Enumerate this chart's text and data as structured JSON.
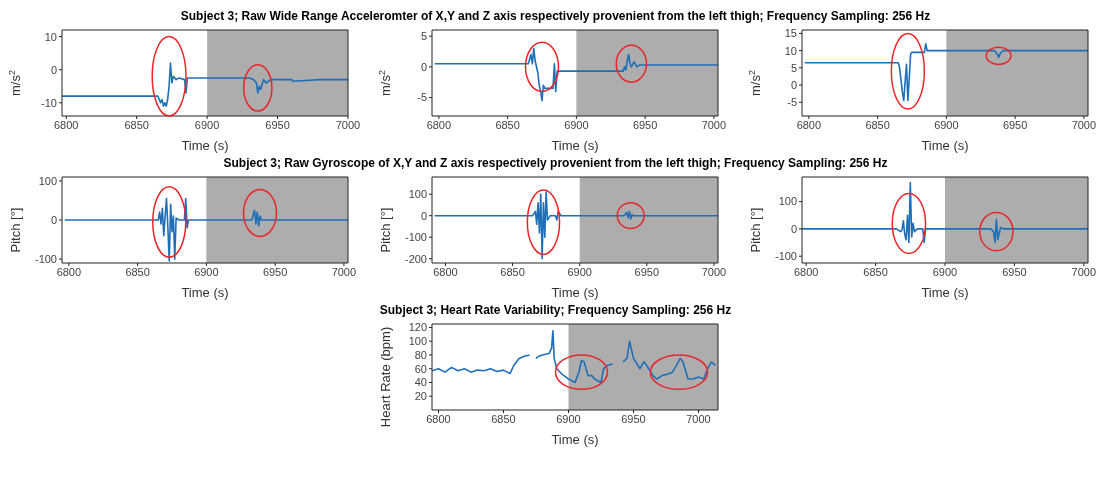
{
  "chart_data": [
    {
      "type": "line",
      "ylabel": "m/s$^{2}$",
      "xlabel": "Time (s)",
      "xlim": [
        6797,
        7000
      ],
      "xticks": [
        6800,
        6850,
        6900,
        6950,
        7000
      ],
      "ylim": [
        -14,
        12
      ],
      "yticks": [
        -10,
        0,
        10
      ],
      "bands": [
        {
          "axis": "x",
          "from": 6900,
          "to": 7000,
          "color": "#adadad"
        }
      ],
      "series": [
        {
          "color": "#1f6fb8",
          "x": [
            6797,
            6820,
            6840,
            6860,
            6865,
            6867,
            6868,
            6869,
            6870,
            6871,
            6872,
            6873,
            6874,
            6875,
            6876,
            6878,
            6880,
            6884,
            6885,
            6886,
            6890,
            6900,
            6920,
            6930,
            6933,
            6935,
            6936,
            6937,
            6938,
            6940,
            6942,
            6945,
            6950,
            6960,
            6961,
            6980,
            7000
          ],
          "values": [
            -8,
            -8,
            -8,
            -8,
            -8,
            -10,
            -9,
            -11,
            -10,
            -11,
            -9,
            -5,
            2,
            -4,
            -2,
            -3,
            -2.5,
            -3,
            -7,
            -2.5,
            -2.5,
            -2.5,
            -2.5,
            -2.5,
            -3,
            -4,
            -7,
            -5,
            -6,
            -3,
            -4,
            -3,
            -3,
            -3,
            -3.5,
            -3,
            -3
          ]
        }
      ]
    },
    {
      "type": "line",
      "title": "Subject 3; Raw Wide Range Acceleromter of X,Y and Z axis respectively provenient from the left thigh; Frequency Sampling: 256 Hz",
      "ylabel": "m/s$^{2}$",
      "xlabel": "Time (s)",
      "xlim": [
        6795,
        7003
      ],
      "xticks": [
        6800,
        6850,
        6900,
        6950,
        7000
      ],
      "ylim": [
        -8,
        6
      ],
      "yticks": [
        -5,
        0,
        5
      ],
      "bands": [
        {
          "axis": "x",
          "from": 6900,
          "to": 7003,
          "color": "#adadad"
        }
      ],
      "series": [
        {
          "color": "#1f6fb8",
          "x": [
            6797,
            6830,
            6860,
            6865,
            6867,
            6868,
            6869,
            6870,
            6872,
            6873,
            6874,
            6875,
            6876,
            6877,
            6880,
            6883,
            6884,
            6885,
            6886,
            6890,
            6910,
            6930,
            6934,
            6935,
            6936,
            6937,
            6938,
            6939,
            6940,
            6942,
            6944,
            6946,
            6950,
            6970,
            7003
          ],
          "values": [
            0.5,
            0.5,
            0.5,
            0.5,
            2,
            0.5,
            3,
            1,
            -1,
            -3,
            -4,
            -5.5,
            -3,
            -3.5,
            -3.5,
            -3.5,
            0.5,
            -4,
            -0.7,
            -0.7,
            -0.7,
            -0.7,
            -0.7,
            0,
            -0.5,
            1,
            2,
            0.5,
            0,
            0.8,
            0,
            0.3,
            0.3,
            0.3,
            0.3
          ]
        }
      ]
    },
    {
      "type": "line",
      "ylabel": "m/s$^{2}$",
      "xlabel": "Time (s)",
      "xlim": [
        6795,
        7003
      ],
      "xticks": [
        6800,
        6850,
        6900,
        6950,
        7000
      ],
      "ylim": [
        -9,
        16
      ],
      "yticks": [
        -5,
        0,
        5,
        10,
        15
      ],
      "bands": [
        {
          "axis": "x",
          "from": 6900,
          "to": 7003,
          "color": "#adadad"
        }
      ],
      "series": [
        {
          "color": "#1f6fb8",
          "x": [
            6797,
            6840,
            6865,
            6866,
            6868,
            6869,
            6870,
            6871,
            6872,
            6873,
            6874,
            6875,
            6878,
            6884,
            6885,
            6886,
            6900,
            6930,
            6935,
            6937,
            6938,
            6939,
            6941,
            6950,
            7003
          ],
          "values": [
            6.5,
            6.5,
            6.5,
            5,
            -2,
            -4.5,
            1,
            6,
            -4.5,
            2,
            9,
            9.5,
            9.5,
            9.5,
            12,
            10,
            10,
            10,
            10,
            9,
            8,
            9,
            10,
            10,
            10
          ]
        }
      ]
    },
    {
      "type": "line",
      "ylabel": "Pitch [°]",
      "xlabel": "Time (s)",
      "xlim": [
        6795,
        7003
      ],
      "xticks": [
        6800,
        6850,
        6900,
        6950,
        7000
      ],
      "ylim": [
        -110,
        110
      ],
      "yticks": [
        -100,
        0,
        100
      ],
      "bands": [
        {
          "axis": "x",
          "from": 6900,
          "to": 7003,
          "color": "#adadad"
        }
      ],
      "series": [
        {
          "color": "#1f6fb8",
          "x": [
            6797,
            6865,
            6866,
            6867,
            6868,
            6869,
            6870,
            6871,
            6872,
            6873,
            6874,
            6875,
            6876,
            6877,
            6878,
            6880,
            6884,
            6885,
            6886,
            6887,
            6900,
            6933,
            6935,
            6936,
            6937,
            6938,
            6939,
            6940,
            6942,
            6960,
            7003
          ],
          "values": [
            0,
            0,
            20,
            -10,
            30,
            -40,
            10,
            55,
            -20,
            -105,
            40,
            -30,
            10,
            -100,
            5,
            0,
            0,
            55,
            -20,
            0,
            0,
            0,
            25,
            -10,
            20,
            -15,
            10,
            0,
            0,
            0,
            0
          ]
        }
      ]
    },
    {
      "type": "line",
      "title": "Subject 3; Raw Gyroscope of X,Y and Z axis respectively provenient from the left thigh; Frequency Sampling: 256 Hz",
      "ylabel": "Pitch [°]",
      "xlabel": "Time (s)",
      "xlim": [
        6790,
        7003
      ],
      "xticks": [
        6800,
        6850,
        6900,
        6950,
        7000
      ],
      "ylim": [
        -220,
        180
      ],
      "yticks": [
        -200,
        -100,
        0,
        100
      ],
      "bands": [
        {
          "axis": "x",
          "from": 6900,
          "to": 7003,
          "color": "#adadad"
        }
      ],
      "series": [
        {
          "color": "#1f6fb8",
          "x": [
            6792,
            6865,
            6867,
            6868,
            6869,
            6870,
            6871,
            6872,
            6873,
            6874,
            6875,
            6876,
            6878,
            6882,
            6883,
            6884,
            6886,
            6888,
            6900,
            6933,
            6935,
            6936,
            6937,
            6938,
            6939,
            6940,
            6942,
            6960,
            7003
          ],
          "values": [
            0,
            0,
            20,
            -40,
            60,
            -80,
            100,
            -200,
            60,
            -100,
            110,
            -20,
            0,
            0,
            -20,
            20,
            0,
            0,
            0,
            0,
            15,
            -10,
            20,
            -15,
            5,
            0,
            0,
            0,
            0
          ]
        }
      ]
    },
    {
      "type": "line",
      "ylabel": "Pitch [°]",
      "xlabel": "Time (s)",
      "xlim": [
        6797,
        7003
      ],
      "xticks": [
        6800,
        6850,
        6900,
        6950,
        7000
      ],
      "ylim": [
        -125,
        190
      ],
      "yticks": [
        -100,
        0,
        100
      ],
      "bands": [
        {
          "axis": "x",
          "from": 6900,
          "to": 7003,
          "color": "#adadad"
        }
      ],
      "series": [
        {
          "color": "#1f6fb8",
          "x": [
            6797,
            6865,
            6868,
            6869,
            6870,
            6871,
            6872,
            6873,
            6874,
            6875,
            6876,
            6877,
            6878,
            6880,
            6884,
            6885,
            6886,
            6900,
            6933,
            6935,
            6936,
            6937,
            6938,
            6940,
            6942,
            7003
          ],
          "values": [
            0,
            0,
            -10,
            -5,
            30,
            -20,
            -40,
            50,
            -50,
            170,
            -30,
            20,
            -10,
            0,
            0,
            -50,
            0,
            0,
            0,
            -10,
            -50,
            35,
            -40,
            5,
            0,
            0
          ]
        }
      ]
    },
    {
      "type": "line",
      "title": "Subject 3; Heart Rate Variability; Frequency Sampling: 256 Hz",
      "ylabel": "Heart Rate (bpm)",
      "xlabel": "Time (s)",
      "xlim": [
        6795,
        7015
      ],
      "xticks": [
        6800,
        6850,
        6900,
        6950,
        7000
      ],
      "ylim": [
        0,
        125
      ],
      "yticks": [
        20,
        40,
        60,
        80,
        100,
        120
      ],
      "bands": [
        {
          "axis": "x",
          "from": 6900,
          "to": 7015,
          "color": "#adadad"
        }
      ],
      "series": [
        {
          "color": "#1f6fb8",
          "x": [
            6795,
            6800,
            6805,
            6810,
            6815,
            6820,
            6825,
            6830,
            6835,
            6840,
            6845,
            6850,
            6855,
            6858,
            6862,
            6866,
            6870,
            6872,
            6875,
            6877,
            6880,
            6885,
            6887,
            6888,
            6889,
            6891,
            6895,
            6900,
            6905,
            6908,
            6910,
            6912,
            6915,
            6918,
            6920,
            6925,
            6927,
            6930,
            6934,
            6938,
            6942,
            6945,
            6947,
            6950,
            6955,
            6958,
            6960,
            6965,
            6968,
            6972,
            6976,
            6980,
            6983,
            6986,
            6988,
            6992,
            6996,
            7000,
            7004,
            7007,
            7010,
            7013
          ],
          "values": [
            57,
            60,
            55,
            62,
            57,
            60,
            55,
            58,
            57,
            60,
            56,
            58,
            53,
            65,
            75,
            78,
            80,
            null,
            75,
            78,
            80,
            82,
            90,
            115,
            75,
            60,
            52,
            45,
            40,
            55,
            72,
            70,
            50,
            50,
            45,
            40,
            60,
            65,
            67,
            null,
            70,
            75,
            100,
            75,
            60,
            70,
            65,
            50,
            45,
            50,
            52,
            55,
            65,
            75,
            70,
            45,
            45,
            48,
            45,
            60,
            70,
            65
          ]
        }
      ]
    }
  ]
}
